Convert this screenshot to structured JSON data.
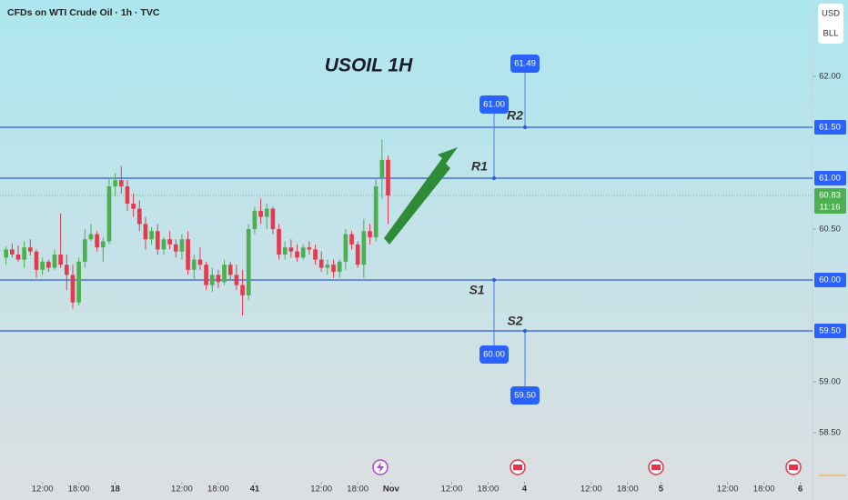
{
  "chart_data": {
    "type": "candlestick",
    "subtitle": "CFDs on WTI Crude Oil · 1h · TVC",
    "title": "USOIL 1H",
    "currency": "USD",
    "unit": "BLL",
    "up_color": "#4caf50",
    "down_color": "#e53950",
    "xlim": [
      -1,
      133
    ],
    "ylim": [
      58.1,
      62.75
    ],
    "yticks": [
      {
        "value": 62,
        "label": "62.00"
      },
      {
        "value": 60.5,
        "label": "60.50"
      },
      {
        "value": 59,
        "label": "59.00"
      },
      {
        "value": 58.5,
        "label": "58.50"
      }
    ],
    "xticks": [
      {
        "value": 6,
        "label": "12:00"
      },
      {
        "value": 12,
        "label": "18:00"
      },
      18,
      {
        "value": 29,
        "label": "12:00"
      },
      {
        "value": 35,
        "label": "18:00"
      },
      41,
      {
        "value": 52,
        "label": "12:00"
      },
      {
        "value": 58,
        "label": "18:00"
      },
      {
        "value": 63.5,
        "label": "Nov"
      },
      {
        "value": 73.5,
        "label": "12:00"
      },
      {
        "value": 79.5,
        "label": "18:00"
      },
      {
        "value": 85.5,
        "label": "4"
      },
      {
        "value": 96.5,
        "label": "12:00"
      },
      {
        "value": 102.5,
        "label": "18:00"
      },
      {
        "value": 108,
        "label": "5"
      },
      {
        "value": 119,
        "label": "12:00"
      },
      {
        "value": 125,
        "label": "18:00"
      },
      {
        "value": 131,
        "label": "6"
      }
    ],
    "x": [
      0,
      1,
      2,
      3,
      4,
      5,
      6,
      7,
      8,
      9,
      10,
      11,
      12,
      13,
      14,
      15,
      16,
      17,
      18,
      19,
      20,
      21,
      22,
      23,
      24,
      25,
      26,
      27,
      28,
      29,
      30,
      31,
      32,
      33,
      34,
      35,
      36,
      37,
      38,
      39,
      40,
      41,
      42,
      43,
      44,
      45,
      46,
      47,
      48,
      49,
      50,
      51,
      52,
      53,
      54,
      55,
      56,
      57,
      58,
      59,
      60,
      61,
      62,
      63
    ],
    "open": [
      60.22,
      60.3,
      60.25,
      60.2,
      60.32,
      60.28,
      60.1,
      60.18,
      60.12,
      60.25,
      60.15,
      60.05,
      59.78,
      60.18,
      60.4,
      60.45,
      60.32,
      60.38,
      60.92,
      60.98,
      60.92,
      60.75,
      60.7,
      60.55,
      60.4,
      60.48,
      60.3,
      60.4,
      60.35,
      60.28,
      60.4,
      60.1,
      60.2,
      60.15,
      59.95,
      60.05,
      59.98,
      60.15,
      60.05,
      59.95,
      59.85,
      60.5,
      60.68,
      60.62,
      60.7,
      60.5,
      60.25,
      60.32,
      60.28,
      60.22,
      60.32,
      60.3,
      60.2,
      60.12,
      60.15,
      60.08,
      60.18,
      60.45,
      60.35,
      60.15,
      60.48,
      60.42,
      61.0,
      61.18
    ],
    "high": [
      60.33,
      60.36,
      60.34,
      60.38,
      60.4,
      60.3,
      60.22,
      60.2,
      60.3,
      60.65,
      60.25,
      60.15,
      60.22,
      60.5,
      60.55,
      60.48,
      60.42,
      61.0,
      61.05,
      61.12,
      60.98,
      60.85,
      60.78,
      60.62,
      60.52,
      60.55,
      60.42,
      60.48,
      60.4,
      60.45,
      60.48,
      60.25,
      60.32,
      60.18,
      60.12,
      60.1,
      60.2,
      60.18,
      60.15,
      60.1,
      60.55,
      60.72,
      60.8,
      60.75,
      60.72,
      60.55,
      60.38,
      60.4,
      60.35,
      60.35,
      60.38,
      60.35,
      60.28,
      60.2,
      60.2,
      60.2,
      60.5,
      60.48,
      60.38,
      60.6,
      60.55,
      61.0,
      61.38,
      61.22
    ],
    "low": [
      60.15,
      60.22,
      60.18,
      60.12,
      60.24,
      60.02,
      60.05,
      60.08,
      60.1,
      60.12,
      59.9,
      59.72,
      59.75,
      60.12,
      60.38,
      60.28,
      60.18,
      60.35,
      60.82,
      60.85,
      60.68,
      60.62,
      60.48,
      60.3,
      60.35,
      60.25,
      60.25,
      60.3,
      60.22,
      60.2,
      60.05,
      60.0,
      60.1,
      59.9,
      59.88,
      59.92,
      59.95,
      60.0,
      59.9,
      59.65,
      59.8,
      60.45,
      60.55,
      60.5,
      60.45,
      60.2,
      60.2,
      60.22,
      60.18,
      60.2,
      60.25,
      60.15,
      60.08,
      60.05,
      60.02,
      60.02,
      60.1,
      60.3,
      60.12,
      60.02,
      60.35,
      60.38,
      60.8,
      60.55
    ],
    "close": [
      60.3,
      60.25,
      60.2,
      60.32,
      60.28,
      60.1,
      60.18,
      60.12,
      60.25,
      60.15,
      60.05,
      59.78,
      60.18,
      60.4,
      60.45,
      60.32,
      60.38,
      60.92,
      60.98,
      60.92,
      60.75,
      60.7,
      60.55,
      60.4,
      60.48,
      60.3,
      60.4,
      60.35,
      60.28,
      60.4,
      60.1,
      60.2,
      60.15,
      59.95,
      60.05,
      59.98,
      60.15,
      60.05,
      59.95,
      59.85,
      60.5,
      60.68,
      60.62,
      60.7,
      60.5,
      60.25,
      60.32,
      60.28,
      60.22,
      60.32,
      60.3,
      60.2,
      60.12,
      60.15,
      60.08,
      60.18,
      60.45,
      60.35,
      60.15,
      60.48,
      60.42,
      60.92,
      61.18,
      60.83
    ],
    "last": {
      "value": 60.83,
      "countdown": "11:16"
    },
    "levels": [
      {
        "name": "R2",
        "value": {
          "value": 61.5,
          "label": "61.50"
        },
        "target": 61.49,
        "color": "#3a9b45"
      },
      {
        "name": "R1",
        "value": {
          "value": 61,
          "label": "61.00"
        },
        "target": {
          "value": 61,
          "label": "61.00"
        },
        "color": "#3a9b45"
      },
      {
        "name": "S1",
        "value": {
          "value": 60,
          "label": "60.00"
        },
        "target": {
          "value": 60,
          "label": "60.00"
        },
        "color": "#e8334a"
      },
      {
        "name": "S2",
        "value": {
          "value": 59.5,
          "label": "59.50"
        },
        "target": {
          "value": 59.5,
          "label": "59.50"
        },
        "color": "#e8334a"
      }
    ]
  }
}
